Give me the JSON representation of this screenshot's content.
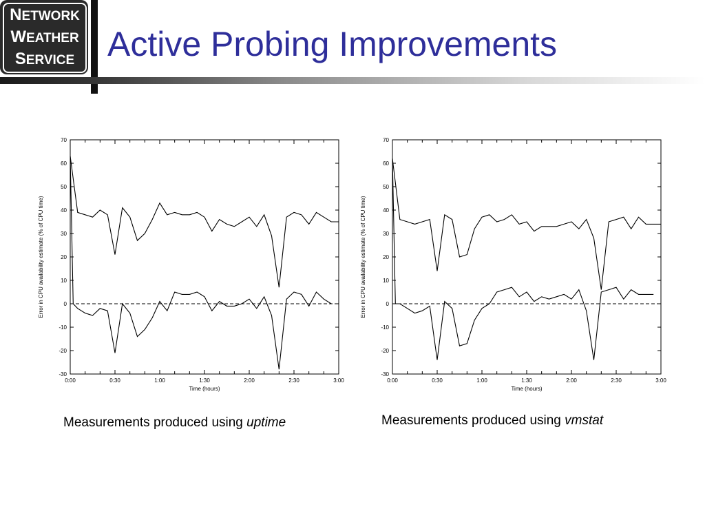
{
  "logo": {
    "line1_cap": "N",
    "line1_rest": "ETWORK",
    "line2_cap": "W",
    "line2_rest": "EATHER",
    "line3_cap": "S",
    "line3_rest": "ERVICE"
  },
  "title": "Active Probing Improvements",
  "captions": [
    {
      "text": "Measurements produced using ",
      "italic": "uptime"
    },
    {
      "text": "Measurements produced using ",
      "italic": "vmstat"
    }
  ],
  "chart_data": [
    {
      "type": "line",
      "xlabel": "Time (hours)",
      "ylabel": "Error in CPU availability estimate (% of CPU time)",
      "xlim": [
        0,
        180
      ],
      "ylim": [
        -30,
        70
      ],
      "x_ticks": [
        0,
        30,
        60,
        90,
        120,
        150,
        180
      ],
      "x_tick_labels": [
        "0:00",
        "0:30",
        "1:00",
        "1:30",
        "2:00",
        "2:30",
        "3:00"
      ],
      "y_ticks": [
        -30,
        -20,
        -10,
        0,
        10,
        20,
        30,
        40,
        50,
        60,
        70
      ],
      "zero_line": "dashed",
      "series": [
        {
          "x": [
            0,
            5,
            10,
            15,
            20,
            25,
            30,
            35,
            40,
            45,
            50,
            55,
            60,
            65,
            70,
            75,
            80,
            85,
            90,
            95,
            100,
            105,
            110,
            115,
            120,
            125,
            130,
            135,
            140,
            145,
            150,
            155,
            160,
            165,
            170,
            175,
            180
          ],
          "values": [
            63,
            39,
            38,
            37,
            40,
            38,
            21,
            41,
            37,
            27,
            30,
            36,
            43,
            38,
            39,
            38,
            38,
            39,
            37,
            31,
            36,
            34,
            33,
            35,
            37,
            33,
            38,
            29,
            7,
            37,
            39,
            38,
            34,
            39,
            37,
            35,
            35
          ]
        },
        {
          "x": [
            0,
            2,
            5,
            10,
            15,
            20,
            25,
            30,
            35,
            40,
            45,
            50,
            55,
            60,
            65,
            70,
            75,
            80,
            85,
            90,
            95,
            100,
            105,
            110,
            115,
            120,
            125,
            130,
            135,
            140,
            145,
            150,
            155,
            160,
            165,
            170,
            175
          ],
          "values": [
            63,
            0,
            -2,
            -4,
            -5,
            -2,
            -3,
            -21,
            0,
            -4,
            -14,
            -11,
            -6,
            1,
            -3,
            5,
            4,
            4,
            5,
            3,
            -3,
            1,
            -1,
            -1,
            0,
            2,
            -2,
            3,
            -5,
            -28,
            2,
            5,
            4,
            -1,
            5,
            2,
            0
          ]
        }
      ]
    },
    {
      "type": "line",
      "xlabel": "Time (hours)",
      "ylabel": "Error in CPU availability estimate (% of CPU time)",
      "xlim": [
        0,
        180
      ],
      "ylim": [
        -30,
        70
      ],
      "x_ticks": [
        0,
        30,
        60,
        90,
        120,
        150,
        180
      ],
      "x_tick_labels": [
        "0:00",
        "0:30",
        "1:00",
        "1:30",
        "2:00",
        "2:30",
        "3:00"
      ],
      "y_ticks": [
        -30,
        -20,
        -10,
        0,
        10,
        20,
        30,
        40,
        50,
        60,
        70
      ],
      "zero_line": "dashed",
      "series": [
        {
          "x": [
            0,
            5,
            10,
            15,
            20,
            25,
            30,
            35,
            40,
            45,
            50,
            55,
            60,
            65,
            70,
            75,
            80,
            85,
            90,
            95,
            100,
            105,
            110,
            115,
            120,
            125,
            130,
            135,
            140,
            145,
            150,
            155,
            160,
            165,
            170,
            175,
            180
          ],
          "values": [
            62,
            36,
            35,
            34,
            35,
            36,
            14,
            38,
            36,
            20,
            21,
            32,
            37,
            38,
            35,
            36,
            38,
            34,
            35,
            31,
            33,
            33,
            33,
            34,
            35,
            32,
            36,
            28,
            6,
            35,
            36,
            37,
            32,
            37,
            34,
            34,
            34
          ]
        },
        {
          "x": [
            0,
            2,
            5,
            10,
            15,
            20,
            25,
            30,
            35,
            40,
            45,
            50,
            55,
            60,
            65,
            70,
            75,
            80,
            85,
            90,
            95,
            100,
            105,
            110,
            115,
            120,
            125,
            130,
            135,
            140,
            145,
            150,
            155,
            160,
            165,
            170,
            175
          ],
          "values": [
            62,
            0,
            0,
            -2,
            -4,
            -3,
            -1,
            -24,
            1,
            -2,
            -18,
            -17,
            -7,
            -2,
            0,
            5,
            6,
            7,
            3,
            5,
            1,
            3,
            2,
            3,
            4,
            2,
            6,
            -3,
            -24,
            5,
            6,
            7,
            2,
            6,
            4,
            4,
            4
          ]
        }
      ]
    }
  ]
}
